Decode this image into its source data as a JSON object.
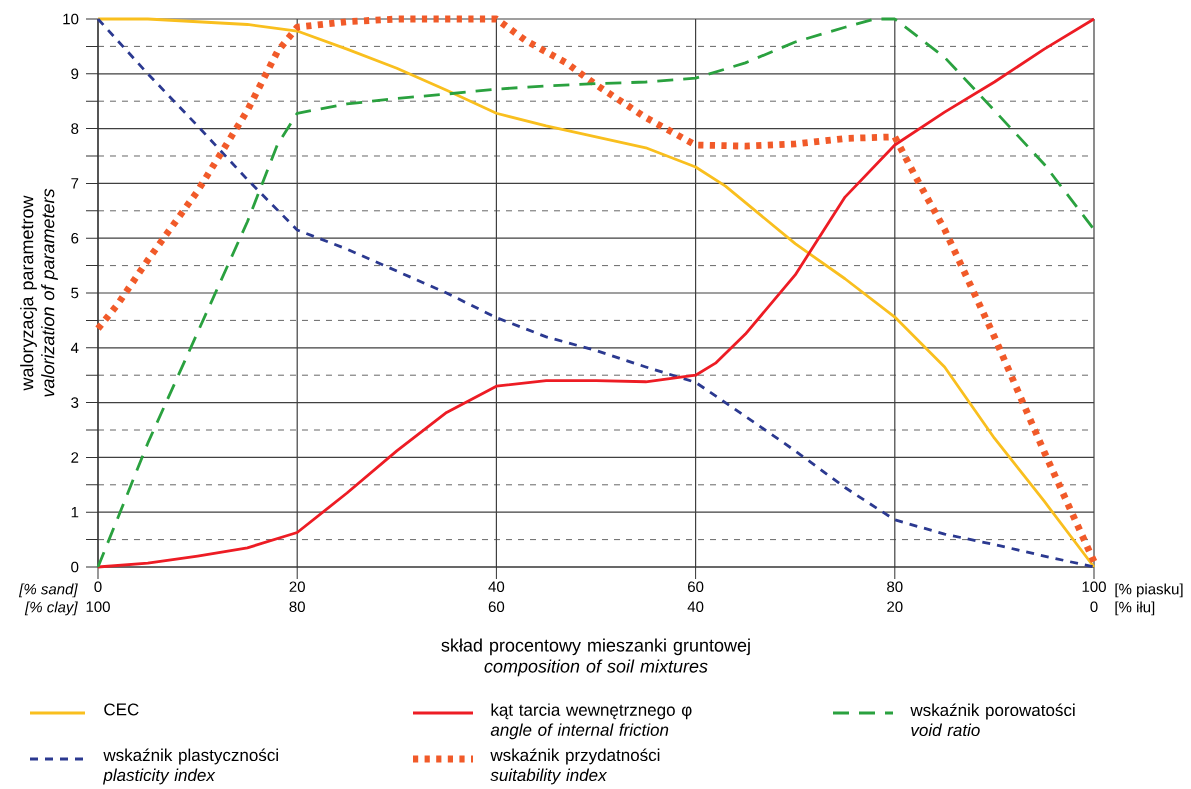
{
  "chart_data": {
    "type": "line",
    "xlabel": "skład procentowy mieszanki gruntowej *composition of soil mixtures*",
    "ylabel": "waloryzacja parametrow *valorization of parameters*",
    "xlim": [
      0,
      100
    ],
    "ylim": [
      0,
      10
    ],
    "xticks": [
      0,
      20,
      40,
      60,
      80,
      100
    ],
    "x2lim": [
      100,
      0
    ],
    "x2ticks": [
      100,
      80,
      60,
      40,
      20,
      0
    ],
    "yticks": [
      0,
      {
        "value": 0.5,
        "label": null
      },
      1,
      {
        "value": 1.5,
        "label": null
      },
      2,
      {
        "value": 2.5,
        "label": null
      },
      3,
      {
        "value": 3.5,
        "label": null
      },
      4,
      {
        "value": 4.5,
        "label": null
      },
      5,
      {
        "value": 5.5,
        "label": null
      },
      6,
      {
        "value": 6.5,
        "label": null
      },
      7,
      {
        "value": 7.5,
        "label": null
      },
      8,
      {
        "value": 8.5,
        "label": null
      },
      9,
      {
        "value": 9.5,
        "label": null
      },
      10
    ],
    "annotations": [
      "[% sand]",
      "[% clay]",
      "[% piasku]",
      "[% iłu]"
    ],
    "grid": true,
    "legend": "bottom",
    "series": [
      {
        "name": "CEC",
        "color": "#f9bf1e",
        "line_style": "solid",
        "x": [
          0,
          5,
          10,
          15,
          20,
          25,
          30,
          35,
          40,
          45,
          50,
          55,
          60,
          63,
          70,
          75,
          80,
          85,
          90,
          95,
          100
        ],
        "values": [
          10,
          10,
          9.95,
          9.9,
          9.78,
          9.45,
          9.1,
          8.7,
          8.28,
          8.05,
          7.85,
          7.65,
          7.3,
          6.95,
          5.9,
          5.26,
          4.56,
          3.65,
          2.35,
          1.2,
          0
        ]
      },
      {
        "name": "wskaźnik plastyczności *plasticity index*",
        "color": "#2b3990",
        "line_style": "dashed",
        "x": [
          0,
          5,
          10,
          15,
          20,
          25,
          30,
          35,
          40,
          45,
          50,
          55,
          60,
          65,
          70,
          75,
          80,
          85,
          90,
          95,
          100
        ],
        "values": [
          10,
          9.0,
          8.05,
          7.07,
          6.15,
          5.8,
          5.4,
          5.0,
          4.55,
          4.2,
          3.95,
          3.65,
          3.37,
          2.75,
          2.12,
          1.45,
          0.86,
          0.6,
          0.41,
          0.2,
          0
        ]
      },
      {
        "name": "kąt tarcia wewnętrznego φ *angle of internal friction*",
        "color": "#ed1c24",
        "line_style": "solid",
        "x": [
          0,
          5,
          10,
          15,
          20,
          25,
          30,
          35,
          40,
          45,
          50,
          55,
          60,
          62,
          65,
          70,
          75,
          80,
          85,
          90,
          95,
          100
        ],
        "values": [
          0,
          0.07,
          0.2,
          0.35,
          0.63,
          1.35,
          2.12,
          2.82,
          3.3,
          3.4,
          3.4,
          3.38,
          3.5,
          3.72,
          4.25,
          5.33,
          6.75,
          7.7,
          8.3,
          8.85,
          9.45,
          10
        ]
      },
      {
        "name": "wskaźnik przydatności *suitability index*",
        "color": "#f15a29",
        "line_style": "dotted",
        "x": [
          0,
          2,
          5,
          10,
          15,
          18,
          20,
          25,
          30,
          35,
          40,
          43,
          47,
          50,
          55,
          60,
          65,
          70,
          75,
          80,
          82,
          85,
          90,
          95,
          100
        ],
        "values": [
          4.35,
          4.8,
          5.6,
          6.86,
          8.33,
          9.4,
          9.85,
          9.95,
          10,
          10,
          10,
          9.6,
          9.2,
          8.8,
          8.2,
          7.7,
          7.68,
          7.72,
          7.82,
          7.85,
          7.15,
          6.16,
          4.2,
          2.1,
          0.1
        ]
      },
      {
        "name": "wskaźnik porowatości *void ratio*",
        "color": "#2aa13f",
        "line_style": "dashed",
        "x": [
          0,
          2,
          5,
          10,
          15,
          18,
          20,
          25,
          30,
          35,
          40,
          45,
          50,
          55,
          60,
          65,
          70,
          75,
          78,
          80,
          85,
          90,
          95,
          100
        ],
        "values": [
          0,
          0.9,
          2.26,
          4.28,
          6.3,
          7.7,
          8.28,
          8.45,
          8.55,
          8.63,
          8.72,
          8.78,
          8.82,
          8.85,
          8.92,
          9.2,
          9.58,
          9.85,
          10,
          10,
          9.3,
          8.33,
          7.35,
          6.16
        ]
      }
    ]
  }
}
